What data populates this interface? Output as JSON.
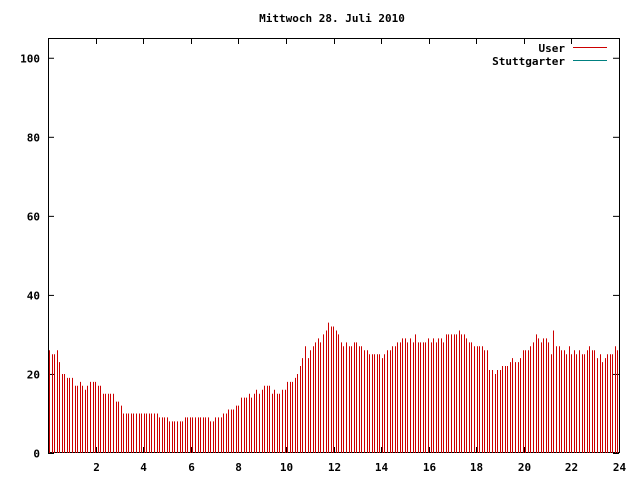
{
  "chart_data": {
    "type": "bar",
    "title": "Mittwoch 28. Juli 2010",
    "xlabel": "",
    "ylabel": "",
    "xlim": [
      0,
      24
    ],
    "ylim": [
      0,
      105
    ],
    "x_ticks": [
      "2",
      "4",
      "6",
      "8",
      "10",
      "12",
      "14",
      "16",
      "18",
      "20",
      "22",
      "24"
    ],
    "y_ticks": [
      "0",
      "20",
      "40",
      "60",
      "80",
      "100"
    ],
    "grid": false,
    "legend_position": "top-right",
    "series": [
      {
        "name": "User",
        "color": "#cc0000",
        "values": [
          26,
          25,
          25,
          26,
          23,
          20,
          20,
          19,
          19,
          19,
          17,
          17,
          18,
          17,
          16,
          17,
          18,
          18,
          18,
          17,
          17,
          15,
          15,
          15,
          15,
          15,
          13,
          13,
          12,
          10,
          10,
          10,
          10,
          10,
          10,
          10,
          10,
          10,
          10,
          10,
          10,
          10,
          10,
          9,
          9,
          9,
          9,
          8,
          8,
          8,
          8,
          8,
          8,
          9,
          9,
          9,
          9,
          9,
          9,
          9,
          9,
          9,
          9,
          8,
          8,
          9,
          9,
          9,
          10,
          10,
          11,
          11,
          11,
          12,
          12,
          14,
          14,
          14,
          15,
          14,
          15,
          16,
          15,
          16,
          17,
          17,
          17,
          15,
          16,
          15,
          15,
          16,
          16,
          18,
          18,
          18,
          19,
          20,
          22,
          24,
          27,
          24,
          26,
          27,
          28,
          29,
          28,
          30,
          31,
          33,
          32,
          32,
          31,
          30,
          28,
          27,
          28,
          27,
          27,
          28,
          28,
          27,
          27,
          26,
          26,
          25,
          25,
          25,
          25,
          25,
          24,
          25,
          26,
          26,
          27,
          27,
          28,
          28,
          29,
          29,
          28,
          29,
          28,
          30,
          28,
          28,
          28,
          28,
          29,
          28,
          29,
          28,
          29,
          29,
          28,
          30,
          30,
          30,
          30,
          30,
          31,
          30,
          30,
          29,
          28,
          28,
          27,
          27,
          27,
          27,
          26,
          26,
          21,
          21,
          20,
          21,
          21,
          22,
          22,
          22,
          23,
          24,
          23,
          23,
          24,
          26,
          26,
          26,
          27,
          28,
          30,
          29,
          28,
          29,
          29,
          28,
          25,
          31,
          27,
          27,
          26,
          26,
          25,
          27,
          25,
          26,
          25,
          26,
          25,
          25,
          26,
          27,
          26,
          26,
          24,
          25,
          23,
          24,
          25,
          25,
          25,
          27,
          26
        ]
      },
      {
        "name": "Stuttgarter",
        "color": "#008080",
        "values": []
      }
    ]
  }
}
